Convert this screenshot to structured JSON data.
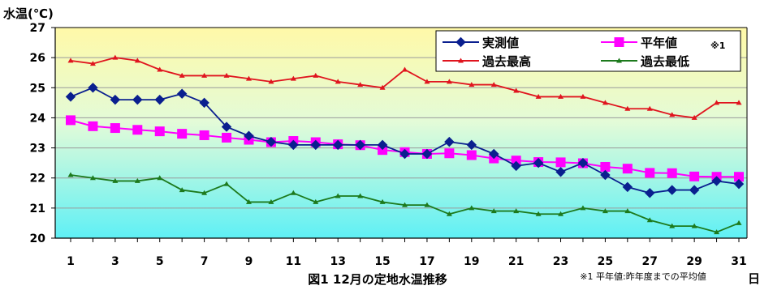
{
  "chart_data": {
    "type": "line",
    "title": "図1  12月の定地水温推移",
    "ylabel": "水温(℃)",
    "xlabel": "日",
    "footnote": "※1 平年値:昨年度までの平均値",
    "ylim": [
      20,
      27
    ],
    "yticks": [
      20,
      21,
      22,
      23,
      24,
      25,
      26,
      27
    ],
    "xlim": [
      1,
      31
    ],
    "xtick_labels": [
      1,
      3,
      5,
      7,
      9,
      11,
      13,
      15,
      17,
      19,
      21,
      23,
      25,
      27,
      29,
      31
    ],
    "x": [
      1,
      2,
      3,
      4,
      5,
      6,
      7,
      8,
      9,
      10,
      11,
      12,
      13,
      14,
      15,
      16,
      17,
      18,
      19,
      20,
      21,
      22,
      23,
      24,
      25,
      26,
      27,
      28,
      29,
      30,
      31
    ],
    "grid": "horizontal",
    "legend_position": "top-right",
    "series": [
      {
        "name": "実測値",
        "superscript": "",
        "color": "#0a1f8f",
        "marker": "diamond",
        "values": [
          24.7,
          25.0,
          24.6,
          24.6,
          24.6,
          24.8,
          24.5,
          23.7,
          23.4,
          23.2,
          23.1,
          23.1,
          23.1,
          23.1,
          23.1,
          22.8,
          22.8,
          23.2,
          23.1,
          22.8,
          22.4,
          22.5,
          22.2,
          22.5,
          22.1,
          21.7,
          21.5,
          21.6,
          21.6,
          21.9,
          21.8
        ]
      },
      {
        "name": "平年値",
        "superscript": "※1",
        "color": "#ff00ff",
        "marker": "square",
        "values": [
          23.92,
          23.72,
          23.66,
          23.6,
          23.55,
          23.47,
          23.42,
          23.34,
          23.27,
          23.19,
          23.23,
          23.19,
          23.12,
          23.09,
          22.93,
          22.86,
          22.8,
          22.82,
          22.76,
          22.65,
          22.58,
          22.53,
          22.52,
          22.49,
          22.37,
          22.31,
          22.17,
          22.16,
          22.05,
          22.04,
          22.04
        ]
      },
      {
        "name": "過去最高",
        "superscript": "",
        "color": "#e0141e",
        "marker": "triangle",
        "values": [
          25.9,
          25.8,
          26.0,
          25.9,
          25.6,
          25.4,
          25.4,
          25.4,
          25.3,
          25.2,
          25.3,
          25.4,
          25.2,
          25.1,
          25.0,
          25.6,
          25.2,
          25.2,
          25.1,
          25.1,
          24.9,
          24.7,
          24.7,
          24.7,
          24.5,
          24.3,
          24.3,
          24.1,
          24.0,
          24.5,
          24.5
        ]
      },
      {
        "name": "過去最低",
        "superscript": "",
        "color": "#1d7a1d",
        "marker": "triangle",
        "values": [
          22.1,
          22.0,
          21.9,
          21.9,
          22.0,
          21.6,
          21.5,
          21.8,
          21.2,
          21.2,
          21.5,
          21.2,
          21.4,
          21.4,
          21.2,
          21.1,
          21.1,
          20.8,
          21.0,
          20.9,
          20.9,
          20.8,
          20.8,
          21.0,
          20.9,
          20.9,
          20.6,
          20.4,
          20.4,
          20.2,
          20.5
        ]
      }
    ]
  }
}
